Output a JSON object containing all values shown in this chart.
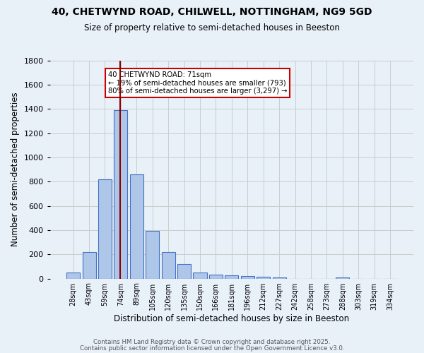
{
  "title_line1": "40, CHETWYND ROAD, CHILWELL, NOTTINGHAM, NG9 5GD",
  "title_line2": "Size of property relative to semi-detached houses in Beeston",
  "xlabel": "Distribution of semi-detached houses by size in Beeston",
  "ylabel": "Number of semi-detached properties",
  "bar_labels": [
    "28sqm",
    "43sqm",
    "59sqm",
    "74sqm",
    "89sqm",
    "105sqm",
    "120sqm",
    "135sqm",
    "150sqm",
    "166sqm",
    "181sqm",
    "196sqm",
    "212sqm",
    "227sqm",
    "242sqm",
    "258sqm",
    "273sqm",
    "288sqm",
    "303sqm",
    "319sqm",
    "334sqm"
  ],
  "bar_values": [
    50,
    220,
    820,
    1390,
    860,
    395,
    220,
    120,
    50,
    35,
    25,
    20,
    15,
    12,
    0,
    0,
    0,
    10,
    0,
    0,
    0
  ],
  "bar_color": "#aec6e8",
  "bar_edge_color": "#4472c4",
  "vline_pos": 2.95,
  "vline_color": "#8b0000",
  "annotation_text": "40 CHETWYND ROAD: 71sqm\n← 19% of semi-detached houses are smaller (793)\n80% of semi-detached houses are larger (3,297) →",
  "annotation_box_color": "#ffffff",
  "annotation_box_edge": "#cc0000",
  "ylim": [
    0,
    1800
  ],
  "yticks": [
    0,
    200,
    400,
    600,
    800,
    1000,
    1200,
    1400,
    1600,
    1800
  ],
  "grid_color": "#cccccc",
  "bg_color": "#e8f0f8",
  "footer_line1": "Contains HM Land Registry data © Crown copyright and database right 2025.",
  "footer_line2": "Contains public sector information licensed under the Open Government Licence v3.0."
}
